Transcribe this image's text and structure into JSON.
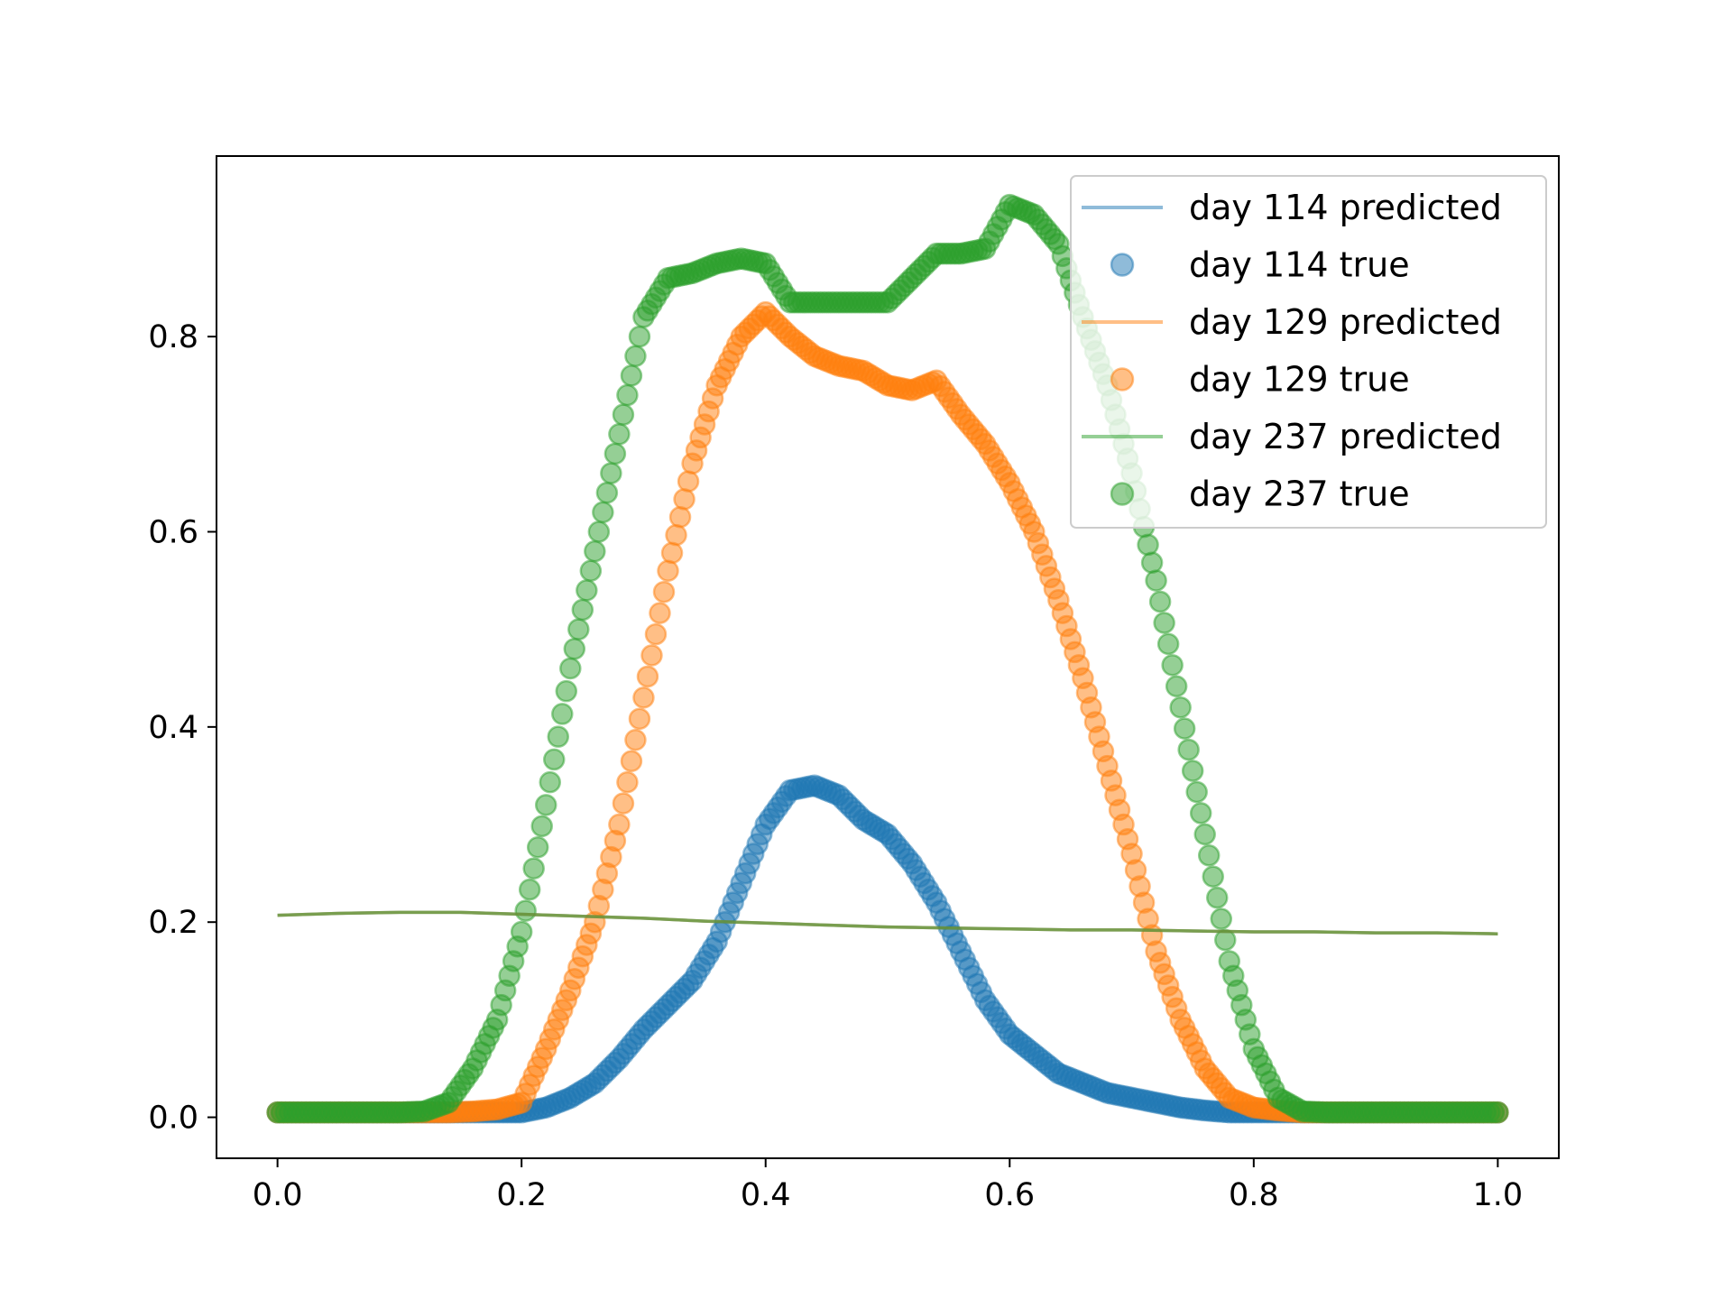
{
  "chart_data": {
    "type": "scatter",
    "title": "",
    "xlabel": "",
    "ylabel": "",
    "xlim": [
      -0.05,
      1.05
    ],
    "ylim": [
      -0.042,
      0.985
    ],
    "xticks": [
      0.0,
      0.2,
      0.4,
      0.6,
      0.8,
      1.0
    ],
    "xtick_labels": [
      "0.0",
      "0.2",
      "0.4",
      "0.6",
      "0.8",
      "1.0"
    ],
    "yticks": [
      0.0,
      0.2,
      0.4,
      0.6,
      0.8
    ],
    "ytick_labels": [
      "0.0",
      "0.2",
      "0.4",
      "0.6",
      "0.8"
    ],
    "grid": false,
    "legend_position": "top-right",
    "colors": {
      "blue": "#1f77b4",
      "orange": "#ff7f0e",
      "green": "#2ca02c",
      "predicted_line": "#6a9950"
    },
    "predicted": {
      "x": [
        0.0,
        0.05,
        0.1,
        0.15,
        0.2,
        0.25,
        0.3,
        0.35,
        0.4,
        0.45,
        0.5,
        0.55,
        0.6,
        0.65,
        0.7,
        0.75,
        0.8,
        0.85,
        0.9,
        0.95,
        1.0
      ],
      "y_day114": [
        0.207,
        0.209,
        0.21,
        0.21,
        0.208,
        0.206,
        0.204,
        0.201,
        0.199,
        0.197,
        0.195,
        0.194,
        0.193,
        0.192,
        0.192,
        0.191,
        0.19,
        0.19,
        0.189,
        0.189,
        0.188
      ],
      "y_day129": [
        0.207,
        0.209,
        0.21,
        0.21,
        0.208,
        0.206,
        0.204,
        0.201,
        0.199,
        0.197,
        0.195,
        0.194,
        0.193,
        0.192,
        0.192,
        0.191,
        0.19,
        0.19,
        0.189,
        0.189,
        0.188
      ],
      "y_day237": [
        0.207,
        0.209,
        0.21,
        0.21,
        0.208,
        0.206,
        0.204,
        0.201,
        0.199,
        0.197,
        0.195,
        0.194,
        0.193,
        0.192,
        0.192,
        0.191,
        0.19,
        0.19,
        0.189,
        0.189,
        0.188
      ]
    },
    "true": {
      "x": [
        0.0,
        0.02,
        0.04,
        0.06,
        0.08,
        0.1,
        0.12,
        0.14,
        0.16,
        0.18,
        0.2,
        0.22,
        0.24,
        0.26,
        0.28,
        0.3,
        0.32,
        0.34,
        0.36,
        0.38,
        0.4,
        0.42,
        0.44,
        0.46,
        0.48,
        0.5,
        0.52,
        0.54,
        0.56,
        0.58,
        0.6,
        0.62,
        0.64,
        0.66,
        0.68,
        0.7,
        0.72,
        0.74,
        0.76,
        0.78,
        0.8,
        0.82,
        0.84,
        0.86,
        0.88,
        0.9,
        0.92,
        0.94,
        0.96,
        0.98,
        1.0
      ],
      "y_day114": [
        0.005,
        0.005,
        0.005,
        0.005,
        0.005,
        0.005,
        0.005,
        0.005,
        0.005,
        0.005,
        0.005,
        0.01,
        0.02,
        0.035,
        0.06,
        0.09,
        0.115,
        0.14,
        0.18,
        0.24,
        0.3,
        0.335,
        0.34,
        0.33,
        0.305,
        0.29,
        0.26,
        0.22,
        0.17,
        0.12,
        0.085,
        0.065,
        0.045,
        0.035,
        0.025,
        0.02,
        0.015,
        0.01,
        0.007,
        0.005,
        0.005,
        0.005,
        0.005,
        0.005,
        0.005,
        0.005,
        0.005,
        0.005,
        0.005,
        0.005,
        0.005
      ],
      "y_day129": [
        0.005,
        0.005,
        0.005,
        0.005,
        0.005,
        0.005,
        0.005,
        0.005,
        0.006,
        0.008,
        0.015,
        0.07,
        0.13,
        0.2,
        0.3,
        0.43,
        0.56,
        0.67,
        0.75,
        0.8,
        0.825,
        0.8,
        0.78,
        0.77,
        0.765,
        0.75,
        0.745,
        0.755,
        0.72,
        0.69,
        0.65,
        0.6,
        0.53,
        0.45,
        0.36,
        0.27,
        0.17,
        0.1,
        0.05,
        0.02,
        0.01,
        0.007,
        0.005,
        0.005,
        0.005,
        0.005,
        0.005,
        0.005,
        0.005,
        0.005,
        0.005
      ],
      "y_day237": [
        0.005,
        0.005,
        0.005,
        0.005,
        0.005,
        0.005,
        0.006,
        0.015,
        0.05,
        0.1,
        0.19,
        0.32,
        0.46,
        0.58,
        0.7,
        0.82,
        0.86,
        0.865,
        0.875,
        0.88,
        0.875,
        0.835,
        0.835,
        0.835,
        0.835,
        0.835,
        0.86,
        0.885,
        0.885,
        0.89,
        0.935,
        0.925,
        0.895,
        0.82,
        0.75,
        0.66,
        0.55,
        0.42,
        0.29,
        0.16,
        0.07,
        0.02,
        0.006,
        0.005,
        0.005,
        0.005,
        0.005,
        0.005,
        0.005,
        0.005,
        0.005
      ]
    },
    "legend": [
      {
        "label": "day 114 predicted",
        "kind": "line",
        "color": "#1f77b4"
      },
      {
        "label": "day 114 true",
        "kind": "marker",
        "color": "#1f77b4"
      },
      {
        "label": "day 129 predicted",
        "kind": "line",
        "color": "#ff7f0e"
      },
      {
        "label": "day 129 true",
        "kind": "marker",
        "color": "#ff7f0e"
      },
      {
        "label": "day 237 predicted",
        "kind": "line",
        "color": "#2ca02c"
      },
      {
        "label": "day 237 true",
        "kind": "marker",
        "color": "#2ca02c"
      }
    ]
  }
}
